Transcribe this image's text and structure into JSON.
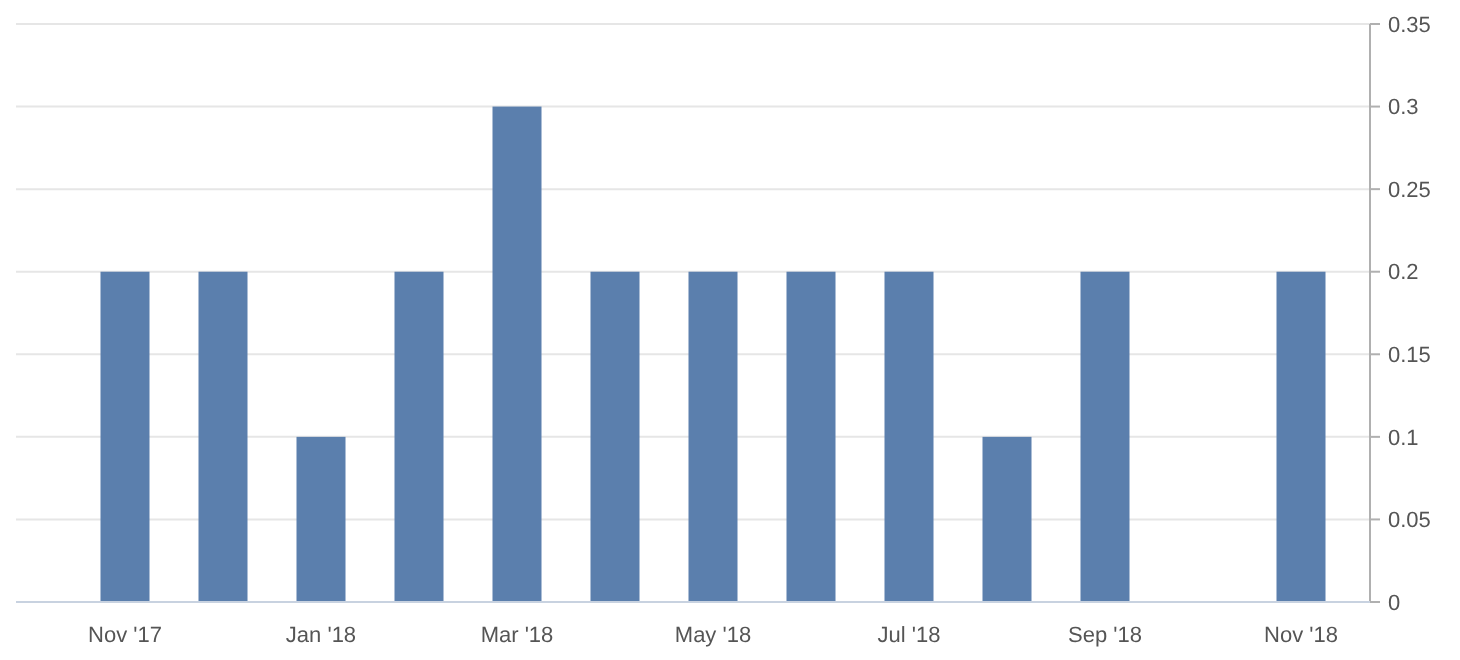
{
  "chart_data": {
    "type": "bar",
    "categories": [
      "Nov '17",
      null,
      "Jan '18",
      null,
      "Mar '18",
      null,
      "May '18",
      null,
      "Jul '18",
      null,
      "Sep '18",
      null,
      "Nov '18"
    ],
    "values": [
      0.2,
      0.2,
      0.1,
      0.2,
      0.3,
      0.2,
      0.2,
      0.2,
      0.2,
      0.1,
      0.2,
      0,
      0.2
    ],
    "color": "#5b7fad",
    "ylim": [
      0,
      0.35
    ],
    "yticks": [
      0,
      0.05,
      0.1,
      0.15,
      0.2,
      0.25,
      0.3,
      0.35
    ],
    "grid": "y"
  }
}
